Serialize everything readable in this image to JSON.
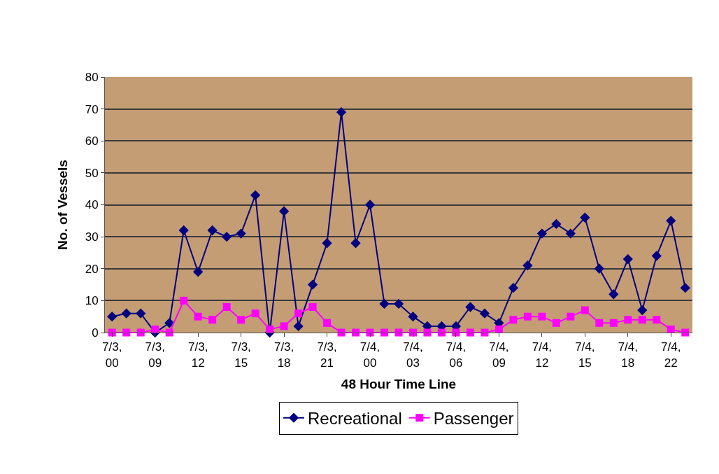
{
  "chart_data": {
    "type": "line",
    "xlabel": "48 Hour Time Line",
    "ylabel": "No. of Vessels",
    "categories": [
      "7/3, 00",
      null,
      null,
      "7/3, 09",
      null,
      null,
      "7/3, 12",
      null,
      null,
      "7/3, 15",
      null,
      null,
      "7/3, 18",
      null,
      null,
      "7/3, 21",
      null,
      null,
      "7/4, 00",
      null,
      null,
      "7/4, 03",
      null,
      null,
      "7/4, 06",
      null,
      null,
      "7/4, 09",
      null,
      null,
      "7/4, 12",
      null,
      null,
      "7/4, 15",
      null,
      null,
      "7/4, 18",
      null,
      null,
      "7/4, 22",
      null
    ],
    "series": [
      {
        "name": "Recreational",
        "color": "#000080",
        "marker": "diamond",
        "values": [
          5,
          6,
          6,
          0,
          3,
          32,
          19,
          32,
          30,
          31,
          43,
          0,
          38,
          2,
          15,
          28,
          69,
          28,
          40,
          9,
          9,
          5,
          2,
          2,
          2,
          8,
          6,
          3,
          14,
          21,
          31,
          34,
          31,
          36,
          20,
          12,
          23,
          7,
          24,
          35,
          14
        ]
      },
      {
        "name": "Passenger",
        "color": "#ff00ff",
        "marker": "square",
        "values": [
          0,
          0,
          0,
          1,
          0,
          10,
          5,
          4,
          8,
          4,
          6,
          1,
          2,
          6,
          8,
          3,
          0,
          0,
          0,
          0,
          0,
          0,
          0,
          0,
          0,
          0,
          0,
          1,
          4,
          5,
          5,
          3,
          5,
          7,
          3,
          3,
          4,
          4,
          4,
          1,
          0
        ]
      }
    ],
    "ylim": [
      0,
      80
    ],
    "yticks": [
      0,
      10,
      20,
      30,
      40,
      50,
      60,
      70,
      80
    ],
    "grid": "y",
    "legend": "bottom",
    "line_style": "solid"
  }
}
